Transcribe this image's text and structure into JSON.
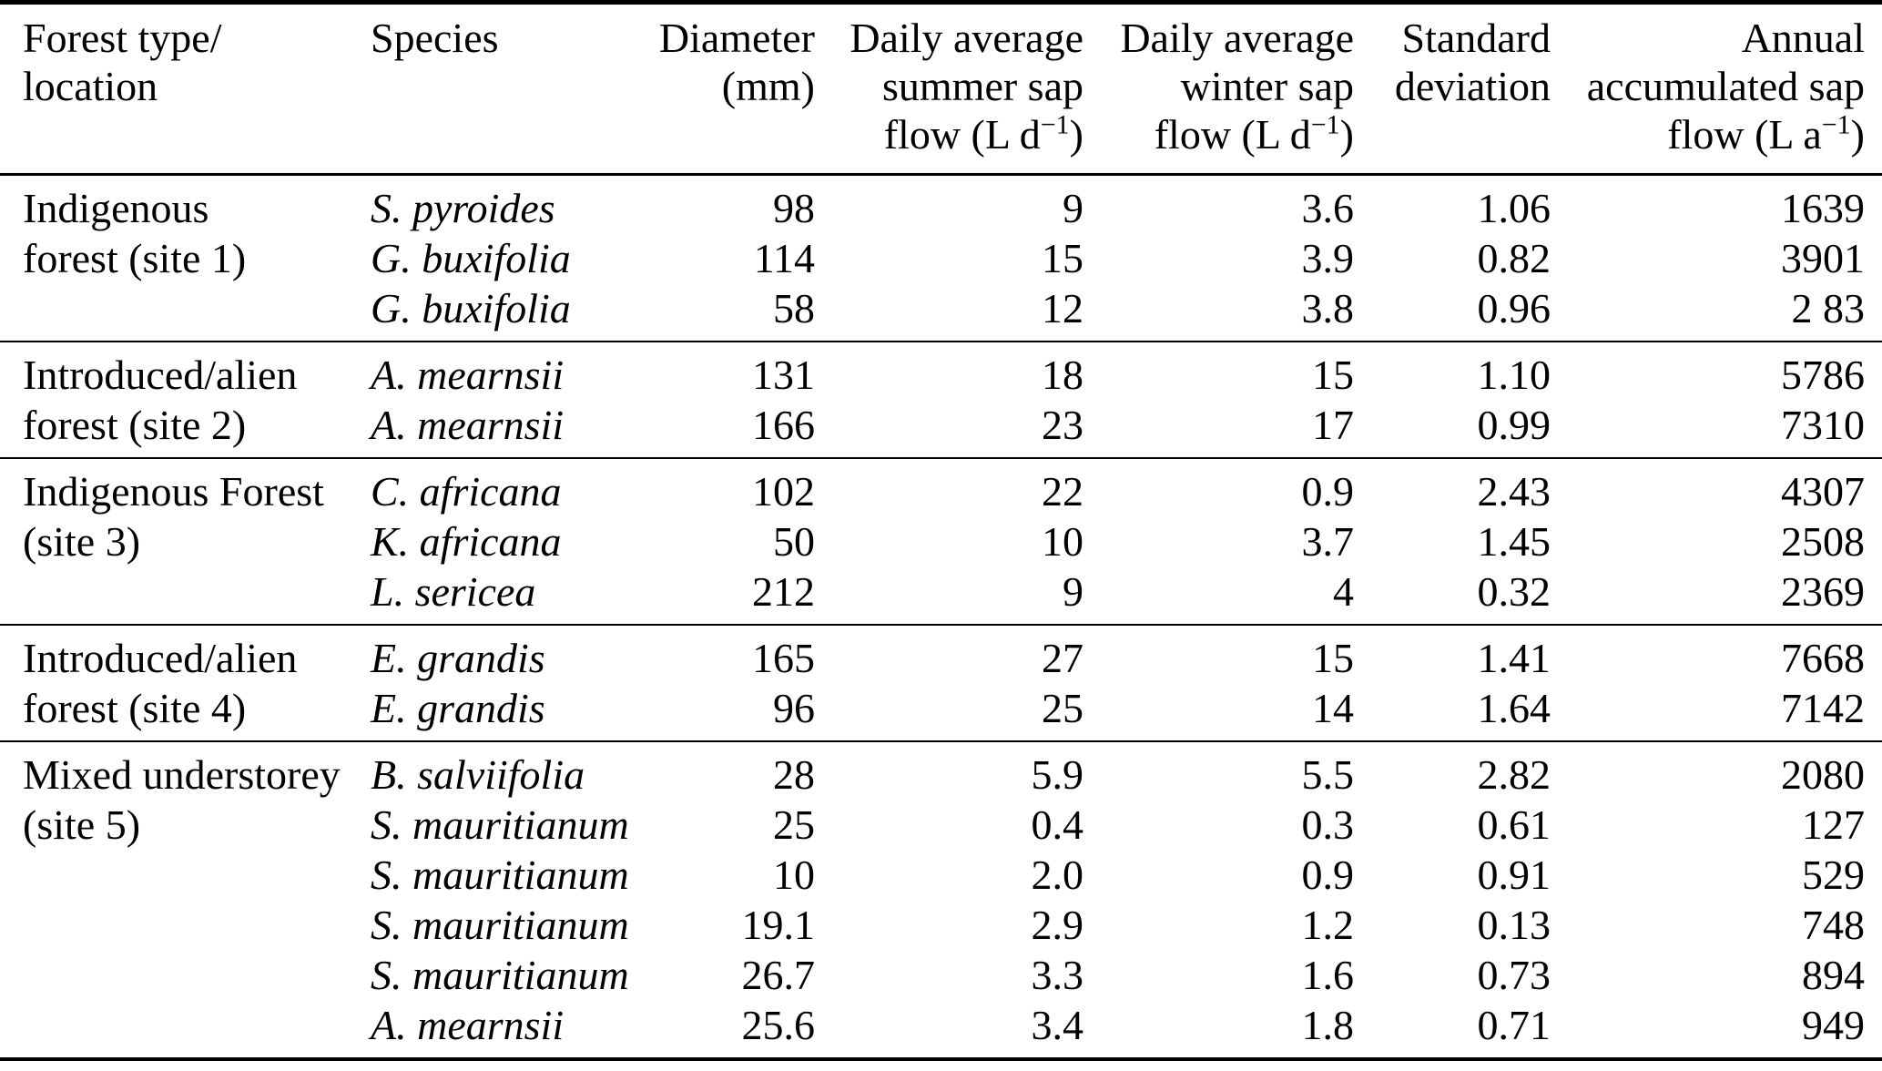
{
  "table": {
    "headers": {
      "col1_line1": "Forest type/",
      "col1_line2": "location",
      "col2": "Species",
      "col3_line1": "Diameter",
      "col3_line2": "(mm)",
      "col4_line1": "Daily average",
      "col4_line2": "summer sap",
      "col4_unit_pre": "flow (L d",
      "col4_sup": "−1",
      "col4_unit_post": ")",
      "col5_line1": "Daily average",
      "col5_line2": "winter sap",
      "col5_unit_pre": "flow (L d",
      "col5_sup": "−1",
      "col5_unit_post": ")",
      "col6_line1": "Standard",
      "col6_line2": "deviation",
      "col7_line1": "Annual",
      "col7_line2": "accumulated sap",
      "col7_unit_pre": "flow (L a",
      "col7_sup": "−1",
      "col7_unit_post": ")"
    },
    "groups": [
      {
        "location_lines": [
          "Indigenous",
          "forest (site 1)"
        ],
        "rows": [
          {
            "species": "S. pyroides",
            "diameter": "98",
            "summer": "9",
            "winter": "3.6",
            "sd": "1.06",
            "annual": "1639"
          },
          {
            "species": "G. buxifolia",
            "diameter": "114",
            "summer": "15",
            "winter": "3.9",
            "sd": "0.82",
            "annual": "3901"
          },
          {
            "species": "G. buxifolia",
            "diameter": "58",
            "summer": "12",
            "winter": "3.8",
            "sd": "0.96",
            "annual": "2 83"
          }
        ]
      },
      {
        "location_lines": [
          "Introduced/alien",
          "forest (site 2)"
        ],
        "rows": [
          {
            "species": "A. mearnsii",
            "diameter": "131",
            "summer": "18",
            "winter": "15",
            "sd": "1.10",
            "annual": "5786"
          },
          {
            "species": "A. mearnsii",
            "diameter": "166",
            "summer": "23",
            "winter": "17",
            "sd": "0.99",
            "annual": "7310"
          }
        ]
      },
      {
        "location_lines": [
          "Indigenous Forest",
          "(site 3)"
        ],
        "rows": [
          {
            "species": "C. africana",
            "diameter": "102",
            "summer": "22",
            "winter": "0.9",
            "sd": "2.43",
            "annual": "4307"
          },
          {
            "species": "K. africana",
            "diameter": "50",
            "summer": "10",
            "winter": "3.7",
            "sd": "1.45",
            "annual": "2508"
          },
          {
            "species": "L. sericea",
            "diameter": "212",
            "summer": "9",
            "winter": "4",
            "sd": "0.32",
            "annual": "2369"
          }
        ]
      },
      {
        "location_lines": [
          "Introduced/alien",
          "forest (site 4)"
        ],
        "rows": [
          {
            "species": "E. grandis",
            "diameter": "165",
            "summer": "27",
            "winter": "15",
            "sd": "1.41",
            "annual": "7668"
          },
          {
            "species": "E. grandis",
            "diameter": "96",
            "summer": "25",
            "winter": "14",
            "sd": "1.64",
            "annual": "7142"
          }
        ]
      },
      {
        "location_lines": [
          "Mixed understorey",
          "(site 5)"
        ],
        "rows": [
          {
            "species": "B. salviifolia",
            "diameter": "28",
            "summer": "5.9",
            "winter": "5.5",
            "sd": "2.82",
            "annual": "2080"
          },
          {
            "species": "S. mauritianum",
            "diameter": "25",
            "summer": "0.4",
            "winter": "0.3",
            "sd": "0.61",
            "annual": "127"
          },
          {
            "species": "S. mauritianum",
            "diameter": "10",
            "summer": "2.0",
            "winter": "0.9",
            "sd": "0.91",
            "annual": "529"
          },
          {
            "species": "S. mauritianum",
            "diameter": "19.1",
            "summer": "2.9",
            "winter": "1.2",
            "sd": "0.13",
            "annual": "748"
          },
          {
            "species": "S. mauritianum",
            "diameter": "26.7",
            "summer": "3.3",
            "winter": "1.6",
            "sd": "0.73",
            "annual": "894"
          },
          {
            "species": "A. mearnsii",
            "diameter": "25.6",
            "summer": "3.4",
            "winter": "1.8",
            "sd": "0.71",
            "annual": "949"
          }
        ]
      }
    ]
  }
}
